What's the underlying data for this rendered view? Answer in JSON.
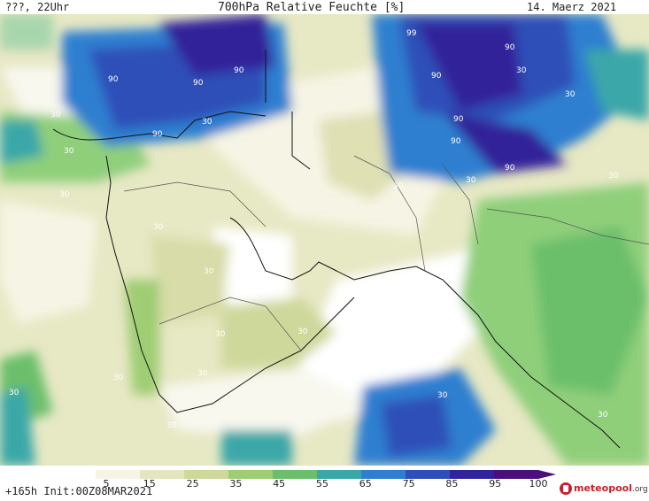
{
  "header": {
    "left": "???, 22Uhr",
    "title": "700hPa Relative Feuchte [%]",
    "date": "14. Maerz 2021"
  },
  "footer": {
    "run": "+165h Init:00Z08MAR2021",
    "logo_main": "meteopool",
    "logo_suffix": ".org"
  },
  "legend": {
    "ticks": [
      "5",
      "15",
      "25",
      "35",
      "45",
      "55",
      "65",
      "75",
      "85",
      "95",
      "100"
    ],
    "colors": [
      "#ffffff",
      "#f6f4e4",
      "#e4e6bf",
      "#cfd89b",
      "#9fcd73",
      "#6cbf6a",
      "#3aa7a8",
      "#2f7fd0",
      "#2e4fb8",
      "#30249a",
      "#4a0f7a"
    ]
  },
  "contour_labels": [
    "90",
    "90",
    "90",
    "90",
    "99",
    "90",
    "90",
    "90",
    "90",
    "90",
    "30",
    "30",
    "30",
    "30",
    "30",
    "30",
    "30",
    "30",
    "30",
    "30",
    "30",
    "30",
    "30",
    "30",
    "30",
    "30",
    "30",
    "30",
    "30",
    "30",
    "30"
  ]
}
